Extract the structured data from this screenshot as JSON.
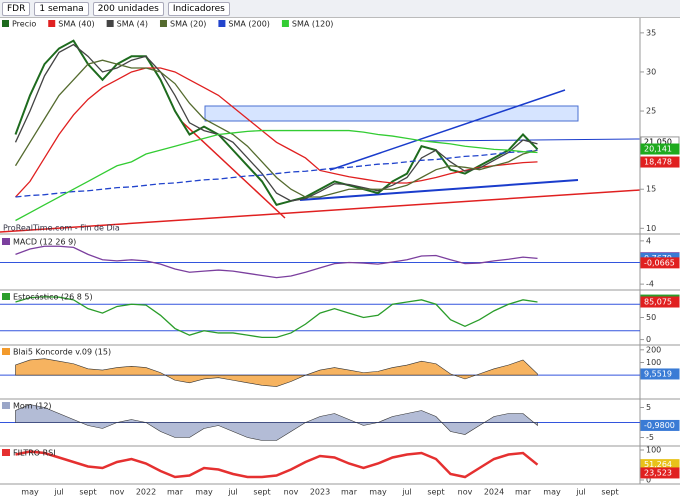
{
  "toolbar": {
    "symbol": "FDR",
    "period": "1 semana",
    "units": "200 unidades",
    "indicators": "Indicadores"
  },
  "watermark": "ProRealTime.com - Fin de Día",
  "chart_data": [
    {
      "type": "line",
      "categories": [
        null,
        "may",
        null,
        "jul",
        null,
        "sept",
        null,
        "nov",
        null,
        "2022",
        null,
        "mar",
        null,
        "may",
        null,
        "jul",
        null,
        "sept",
        null,
        "nov",
        null,
        "2023",
        null,
        "mar",
        null,
        "may",
        null,
        "jul",
        null,
        "sept",
        null,
        "nov",
        null,
        "2024",
        null,
        "mar",
        null,
        "may",
        null,
        "jul",
        null,
        "sept"
      ],
      "ylim": [
        9.4,
        36.9
      ],
      "yticks": [
        35,
        30,
        25,
        15,
        10
      ],
      "series": [
        {
          "name": "Precio",
          "color": "#1e6b1e",
          "values": [
            22,
            27,
            31,
            33,
            34,
            31,
            29,
            31,
            32,
            32,
            29,
            25,
            22,
            23,
            22,
            20,
            18,
            16,
            13,
            13.5,
            14,
            15,
            16,
            15.5,
            15,
            14.5,
            16,
            17,
            20.5,
            20,
            17.5,
            17,
            18,
            19,
            20,
            22,
            20.1,
            null,
            null,
            null,
            null,
            null
          ]
        },
        {
          "name": "SMA (40)",
          "color": "#e02020",
          "values": [
            14,
            16,
            19,
            22,
            24.5,
            26.5,
            28,
            29,
            30,
            30.5,
            30.5,
            30,
            29,
            28,
            27,
            25.5,
            24,
            22.5,
            21,
            20,
            19,
            17.4,
            17,
            16.6,
            16.3,
            16,
            15.8,
            15.8,
            16.1,
            16.5,
            17,
            17.4,
            17.8,
            18,
            18.2,
            18.4,
            18.5,
            null,
            null,
            null,
            null,
            null
          ]
        },
        {
          "name": "SMA (4)",
          "color": "#444444",
          "values": [
            21,
            25,
            29.5,
            32.5,
            33.5,
            32,
            30,
            30.5,
            31.5,
            32,
            30,
            27,
            23.5,
            22.5,
            22,
            21,
            19,
            17,
            14.5,
            13.5,
            13.8,
            14.7,
            15.7,
            15.6,
            15.2,
            14.8,
            15.5,
            16.5,
            19,
            20,
            18.5,
            17.3,
            17.7,
            18.7,
            19.7,
            21.3,
            20.8,
            null,
            null,
            null,
            null,
            null
          ]
        },
        {
          "name": "SMA (20)",
          "color": "#556b2f",
          "values": [
            18,
            21,
            24,
            27,
            29,
            31,
            31.5,
            31,
            30.5,
            30.5,
            30,
            28.5,
            26,
            24,
            23,
            22,
            20.5,
            18.5,
            16.5,
            15,
            14,
            14,
            14.5,
            15,
            15,
            15,
            15,
            15.5,
            16.5,
            17.5,
            18,
            17.8,
            17.5,
            18,
            18.5,
            19.5,
            20,
            null,
            null,
            null,
            null,
            null
          ]
        },
        {
          "name": "SMA (200)",
          "color": "#2244cc",
          "values": [
            14,
            14.2,
            14.3,
            14.5,
            14.7,
            14.8,
            15,
            15.2,
            15.3,
            15.5,
            15.7,
            15.8,
            16,
            16.2,
            16.3,
            16.5,
            16.7,
            16.8,
            17,
            17.2,
            17.3,
            17.5,
            17.7,
            17.8,
            18,
            18.2,
            18.3,
            18.5,
            18.7,
            18.8,
            19,
            19.2,
            19.3,
            19.5,
            19.7,
            19.8,
            20,
            null,
            null,
            null,
            null,
            null
          ]
        },
        {
          "name": "SMA (120)",
          "color": "#33cc33",
          "values": [
            11,
            12,
            13,
            14,
            15,
            16,
            17,
            18,
            18.5,
            19.5,
            20,
            20.5,
            21,
            21.5,
            22,
            22.2,
            22.4,
            22.5,
            22.5,
            22.5,
            22.5,
            22.5,
            22.5,
            22.5,
            22.3,
            22,
            21.8,
            21.5,
            21.2,
            21,
            20.8,
            20.5,
            20.3,
            20.1,
            20,
            19.8,
            19.7,
            null,
            null,
            null,
            null,
            null
          ]
        }
      ],
      "value_labels": [
        {
          "value": 21.05,
          "label": "21,050",
          "color": "#ffffff"
        },
        {
          "value": 20.141,
          "label": "20,141",
          "color": "#1faa1f"
        },
        {
          "value": 18.478,
          "label": "18,478",
          "color": "#e02020"
        }
      ]
    },
    {
      "type": "line",
      "title": "MACD (12 26 9)",
      "ylim": [
        -4.9,
        4.9
      ],
      "yticks": [
        4,
        -4
      ],
      "levels": [
        0
      ],
      "series": [
        {
          "color": "#7b3f9e",
          "values": [
            1.5,
            2.5,
            3,
            3,
            2.8,
            1.5,
            0.5,
            0.3,
            0.5,
            0.3,
            -0.3,
            -1.2,
            -1.8,
            -1.6,
            -1.4,
            -1.6,
            -2,
            -2.4,
            -2.8,
            -2.5,
            -1.8,
            -1,
            -0.2,
            0,
            -0.1,
            -0.3,
            0.1,
            0.5,
            1.2,
            1.3,
            0.5,
            -0.2,
            -0.1,
            0.3,
            0.6,
            1,
            0.77,
            null,
            null,
            null,
            null,
            null
          ]
        }
      ],
      "value_labels": [
        {
          "value": 0.8844,
          "label": "0,8844",
          "color": "#7b3f9e"
        },
        {
          "value": 0.7679,
          "label": "0,7679",
          "color": "#3a7bd5"
        },
        {
          "value": -0.0665,
          "label": "-0,0665",
          "color": "#e02020"
        }
      ]
    },
    {
      "type": "line",
      "title": "Estocástico (26 8 5)",
      "ylim": [
        -10,
        110
      ],
      "yticks": [
        50,
        0
      ],
      "levels": [
        80,
        20
      ],
      "series": [
        {
          "color": "#2a9d2a",
          "values": [
            85,
            95,
            97,
            96,
            90,
            70,
            60,
            75,
            80,
            78,
            55,
            25,
            10,
            20,
            15,
            15,
            10,
            5,
            5,
            15,
            35,
            60,
            70,
            60,
            50,
            55,
            80,
            85,
            90,
            80,
            45,
            30,
            45,
            65,
            80,
            90,
            85,
            null,
            null,
            null,
            null,
            null
          ]
        }
      ],
      "value_labels": [
        {
          "value": 89.438,
          "label": "89,438",
          "color": "#2a9d2a"
        },
        {
          "value": 85.075,
          "label": "85,075",
          "color": "#e02020"
        }
      ]
    },
    {
      "type": "area",
      "title": "Blai5 Koncorde v.09 (15)",
      "ylim": [
        -180,
        230
      ],
      "yticks": [
        200,
        100
      ],
      "levels": [
        0
      ],
      "series": [
        {
          "color": "#f39a2b",
          "values": [
            80,
            120,
            130,
            110,
            90,
            50,
            40,
            60,
            70,
            60,
            20,
            -40,
            -60,
            -30,
            -20,
            -40,
            -60,
            -80,
            -90,
            -50,
            0,
            40,
            60,
            40,
            20,
            30,
            60,
            80,
            110,
            90,
            10,
            -30,
            10,
            50,
            80,
            120,
            10,
            null,
            null,
            null,
            null,
            null
          ]
        }
      ],
      "value_labels": [
        {
          "value": 9.5519,
          "label": "9,5519",
          "color": "#3a7bd5"
        }
      ]
    },
    {
      "type": "area",
      "title": "Mom (12)",
      "ylim": [
        -7.5,
        7.5
      ],
      "yticks": [
        5,
        -5
      ],
      "levels": [
        0
      ],
      "series": [
        {
          "color": "#9aa6c8",
          "values": [
            4,
            6,
            5,
            3,
            1,
            -1,
            -2,
            0,
            1,
            0,
            -3,
            -5,
            -5,
            -2,
            -1,
            -3,
            -5,
            -6,
            -6,
            -3,
            0,
            2,
            3,
            1,
            -1,
            0,
            2,
            3,
            4,
            2,
            -3,
            -4,
            -1,
            2,
            3,
            3,
            -1,
            null,
            null,
            null,
            null,
            null
          ]
        }
      ],
      "value_labels": [
        {
          "value": -0.98,
          "label": "-0,9800",
          "color": "#3a7bd5"
        }
      ]
    },
    {
      "type": "line",
      "title": "FILTRO RSI",
      "ylim": [
        -10,
        110
      ],
      "yticks": [
        100,
        0
      ],
      "levels": [],
      "series": [
        {
          "color": "#e53030",
          "values": [
            85,
            95,
            90,
            75,
            60,
            45,
            40,
            60,
            70,
            55,
            30,
            10,
            15,
            40,
            35,
            20,
            10,
            10,
            15,
            35,
            60,
            80,
            75,
            55,
            40,
            55,
            75,
            85,
            90,
            70,
            20,
            10,
            40,
            70,
            85,
            90,
            51,
            null,
            null,
            null,
            null,
            null
          ]
        }
      ],
      "value_labels": [
        {
          "value": 51.264,
          "label": "51,264",
          "color": "#e8c21a"
        },
        {
          "value": 23.523,
          "label": "23,523",
          "color": "#e02020"
        }
      ]
    }
  ]
}
